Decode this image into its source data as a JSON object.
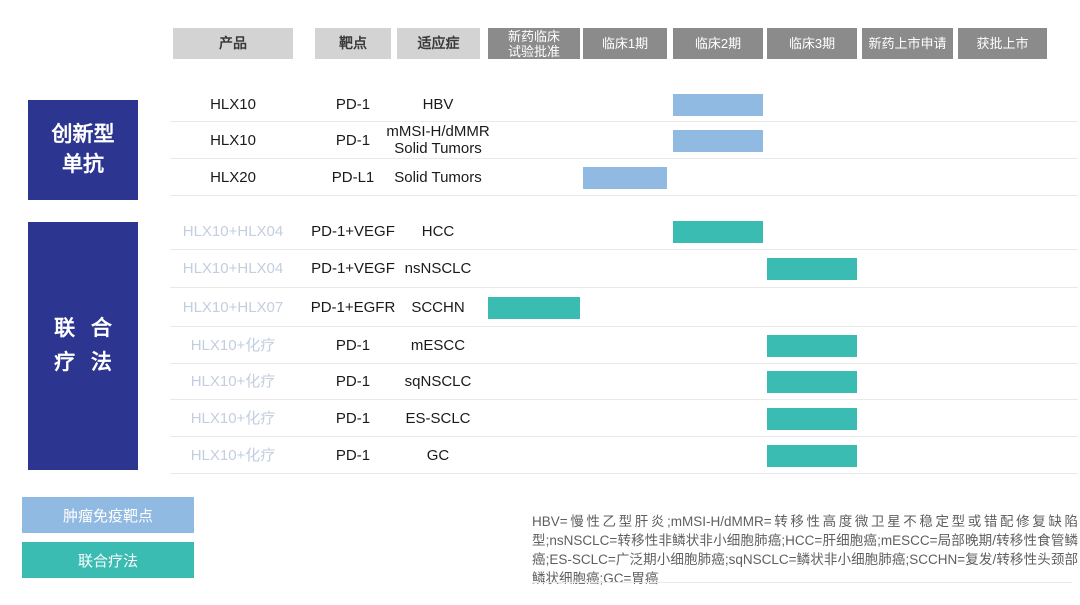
{
  "header": {
    "columns": [
      {
        "label": "产品",
        "style": "light"
      },
      {
        "label": "靶点",
        "style": "light"
      },
      {
        "label": "适应症",
        "style": "light"
      },
      {
        "label": "新药临床\n试验批准",
        "style": "dark"
      },
      {
        "label": "临床1期",
        "style": "dark"
      },
      {
        "label": "临床2期",
        "style": "dark"
      },
      {
        "label": "临床3期",
        "style": "dark"
      },
      {
        "label": "新药上市申请",
        "style": "dark"
      },
      {
        "label": "获批上市",
        "style": "dark"
      }
    ]
  },
  "sidebar": {
    "groups": [
      {
        "label": "创新型\n单抗"
      },
      {
        "label": "联 合\n疗 法"
      }
    ]
  },
  "rows": [
    {
      "product": "HLX10",
      "target": "PD-1",
      "indication": "HBV",
      "section": "mono",
      "muted": false,
      "bar": {
        "phase": "临床2期",
        "color": "bar_blue"
      }
    },
    {
      "product": "HLX10",
      "target": "PD-1",
      "indication": "mMSI-H/dMMR\nSolid Tumors",
      "section": "mono",
      "muted": false,
      "bar": {
        "phase": "临床2期",
        "color": "bar_blue"
      }
    },
    {
      "product": "HLX20",
      "target": "PD-L1",
      "indication": "Solid Tumors",
      "section": "mono",
      "muted": false,
      "bar": {
        "phase": "临床1期",
        "color": "bar_blue"
      }
    },
    {
      "product": "HLX10+HLX04",
      "target": "PD-1+VEGF",
      "indication": "HCC",
      "section": "combo",
      "muted": true,
      "bar": {
        "phase": "临床2期",
        "color": "bar_teal"
      }
    },
    {
      "product": "HLX10+HLX04",
      "target": "PD-1+VEGF",
      "indication": "nsNSCLC",
      "section": "combo",
      "muted": true,
      "bar": {
        "phase": "临床3期",
        "color": "bar_teal"
      }
    },
    {
      "product": "HLX10+HLX07",
      "target": "PD-1+EGFR",
      "indication": "SCCHN",
      "section": "combo",
      "muted": true,
      "bar": {
        "phase": "新药临床试验批准",
        "color": "bar_teal"
      }
    },
    {
      "product": "HLX10+化疗",
      "target": "PD-1",
      "indication": "mESCC",
      "section": "combo",
      "muted": true,
      "bar": {
        "phase": "临床3期",
        "color": "bar_teal"
      }
    },
    {
      "product": "HLX10+化疗",
      "target": "PD-1",
      "indication": "sqNSCLC",
      "section": "combo",
      "muted": true,
      "bar": {
        "phase": "临床3期",
        "color": "bar_teal"
      }
    },
    {
      "product": "HLX10+化疗",
      "target": "PD-1",
      "indication": "ES-SCLC",
      "section": "combo",
      "muted": true,
      "bar": {
        "phase": "临床3期",
        "color": "bar_teal"
      }
    },
    {
      "product": "HLX10+化疗",
      "target": "PD-1",
      "indication": "GC",
      "section": "combo",
      "muted": true,
      "bar": {
        "phase": "临床3期",
        "color": "bar_teal"
      }
    }
  ],
  "legend": [
    {
      "label": "肿瘤免疫靶点",
      "color": "#90BAE1"
    },
    {
      "label": "联合疗法",
      "color": "#3ABCB2"
    }
  ],
  "footnote": "HBV=慢性乙型肝炎;mMSI-H/dMMR=转移性高度微卫星不稳定型或错配修复缺陷型;nsNSCLC=转移性非鳞状非小细胞肺癌;HCC=肝细胞癌;mESCC=局部晚期/转移性食管鳞癌;ES-SCLC=广泛期小细胞肺癌;sqNSCLC=鳞状非小细胞肺癌;SCCHN=复发/转移性头颈部鳞状细胞癌;GC=胃癌",
  "colors": {
    "bar_blue": "#90BAE1",
    "bar_teal": "#3ABCB2",
    "sidebar_blue": "#2C3590",
    "header_light": "#D3D3D3",
    "header_dark": "#8B8B8B",
    "muted_text": "#C3CEDE",
    "divider": "#E9E9E9",
    "text": "#1A1A1A",
    "footnote_text": "#5F5F5F"
  },
  "chart_data": {
    "type": "table",
    "title": "",
    "columns": [
      "产品",
      "靶点",
      "适应症",
      "新药临床试验批准",
      "临床1期",
      "临床2期",
      "临床3期",
      "新药上市申请",
      "获批上市"
    ],
    "phases": [
      "新药临床试验批准",
      "临床1期",
      "临床2期",
      "临床3期",
      "新药上市申请",
      "获批上市"
    ],
    "rows": [
      {
        "产品": "HLX10",
        "靶点": "PD-1",
        "适应症": "HBV",
        "current_phase": "临床2期",
        "category": "肿瘤免疫靶点"
      },
      {
        "产品": "HLX10",
        "靶点": "PD-1",
        "适应症": "mMSI-H/dMMR Solid Tumors",
        "current_phase": "临床2期",
        "category": "肿瘤免疫靶点"
      },
      {
        "产品": "HLX20",
        "靶点": "PD-L1",
        "适应症": "Solid Tumors",
        "current_phase": "临床1期",
        "category": "肿瘤免疫靶点"
      },
      {
        "产品": "HLX10+HLX04",
        "靶点": "PD-1+VEGF",
        "适应症": "HCC",
        "current_phase": "临床2期",
        "category": "联合疗法"
      },
      {
        "产品": "HLX10+HLX04",
        "靶点": "PD-1+VEGF",
        "适应症": "nsNSCLC",
        "current_phase": "临床3期",
        "category": "联合疗法"
      },
      {
        "产品": "HLX10+HLX07",
        "靶点": "PD-1+EGFR",
        "适应症": "SCCHN",
        "current_phase": "新药临床试验批准",
        "category": "联合疗法"
      },
      {
        "产品": "HLX10+化疗",
        "靶点": "PD-1",
        "适应症": "mESCC",
        "current_phase": "临床3期",
        "category": "联合疗法"
      },
      {
        "产品": "HLX10+化疗",
        "靶点": "PD-1",
        "适应症": "sqNSCLC",
        "current_phase": "临床3期",
        "category": "联合疗法"
      },
      {
        "产品": "HLX10+化疗",
        "靶点": "PD-1",
        "适应症": "ES-SCLC",
        "current_phase": "临床3期",
        "category": "联合疗法"
      },
      {
        "产品": "HLX10+化疗",
        "靶点": "PD-1",
        "适应症": "GC",
        "current_phase": "临床3期",
        "category": "联合疗法"
      }
    ],
    "legend": [
      "肿瘤免疫靶点",
      "联合疗法"
    ],
    "legend_position": "bottom-left"
  }
}
